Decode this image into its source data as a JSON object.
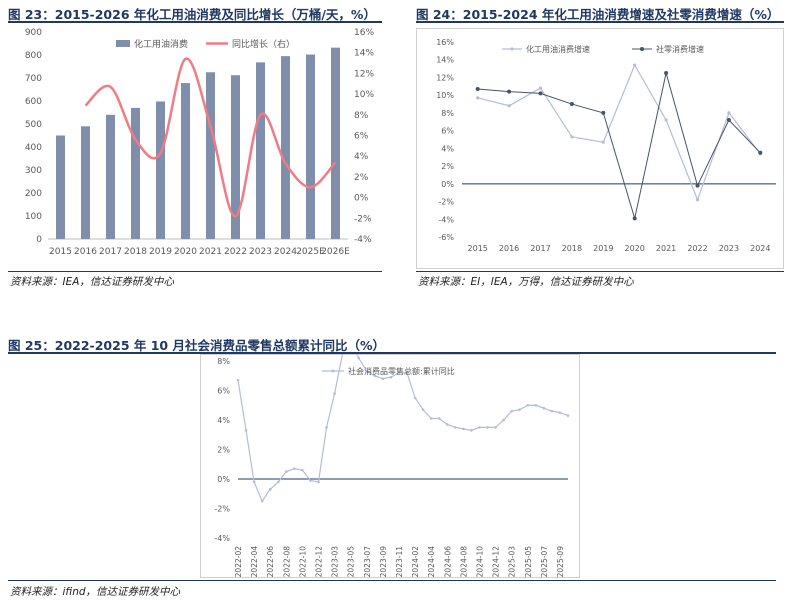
{
  "figures": [
    {
      "title": "图 23：2015-2026 年化工用油消费及同比增长（万桶/天，%）",
      "source": "资料来源：IEA，信达证券研发中心"
    },
    {
      "title": "图 24：2015-2024 年化工用油消费增速及社零消费增速（%）",
      "source": "资料来源：EI，IEA，万得，信达证券研发中心"
    },
    {
      "title": "图 25：2022-2025 年 10 月社会消费品零售总额累计同比（%）",
      "source": "资料来源：ifind，信达证券研发中心"
    }
  ],
  "chart_data": [
    {
      "type": "bar",
      "title": "",
      "categories": [
        "2015",
        "2016",
        "2017",
        "2018",
        "2019",
        "2020",
        "2021",
        "2022",
        "2023",
        "2024",
        "2025E",
        "2026E"
      ],
      "series": [
        {
          "name": "化工用油消费",
          "type": "bar",
          "axis": "left",
          "values": [
            450,
            490,
            540,
            570,
            598,
            678,
            725,
            712,
            768,
            795,
            802,
            832
          ]
        },
        {
          "name": "同比增长（右）",
          "type": "line",
          "axis": "right",
          "values": [
            null,
            8.9,
            10.7,
            5.6,
            4.3,
            13.4,
            6.9,
            -1.8,
            8.0,
            3.3,
            1.0,
            3.4
          ]
        }
      ],
      "ylim_left": [
        0,
        900
      ],
      "yticks_left": [
        "0",
        "100",
        "200",
        "300",
        "400",
        "500",
        "600",
        "700",
        "800",
        "900"
      ],
      "ylim_right": [
        -4,
        16
      ],
      "yticks_right": [
        "-4%",
        "-2%",
        "0%",
        "2%",
        "4%",
        "6%",
        "8%",
        "10%",
        "12%",
        "14%",
        "16%"
      ],
      "colors": {
        "bar": "#7f8eab",
        "line": "#f07b84"
      },
      "legend": "top-center",
      "grid": false
    },
    {
      "type": "line",
      "title": "",
      "categories": [
        "2015",
        "2016",
        "2017",
        "2018",
        "2019",
        "2020",
        "2021",
        "2022",
        "2023",
        "2024"
      ],
      "series": [
        {
          "name": "化工用油消费增速",
          "values": [
            9.7,
            8.8,
            10.8,
            5.3,
            4.7,
            13.4,
            7.2,
            -1.8,
            8.0,
            3.4
          ],
          "color": "#b4bdd6"
        },
        {
          "name": "社零消费增速",
          "values": [
            10.7,
            10.4,
            10.2,
            9.0,
            8.0,
            -3.9,
            12.5,
            -0.2,
            7.2,
            3.5
          ],
          "color": "#44546a"
        }
      ],
      "ylim": [
        -6,
        16
      ],
      "yticks": [
        "-6%",
        "-4%",
        "-2%",
        "0%",
        "2%",
        "4%",
        "6%",
        "8%",
        "10%",
        "12%",
        "14%",
        "16%"
      ],
      "legend": "top-left",
      "grid": false
    },
    {
      "type": "line",
      "title": "",
      "categories": [
        "2022-02",
        "2022-03",
        "2022-04",
        "2022-05",
        "2022-06",
        "2022-07",
        "2022-08",
        "2022-09",
        "2022-10",
        "2022-11",
        "2022-12",
        "2023-02",
        "2023-03",
        "2023-04",
        "2023-05",
        "2023-06",
        "2023-07",
        "2023-08",
        "2023-09",
        "2023-10",
        "2023-11",
        "2023-12",
        "2024-02",
        "2024-03",
        "2024-04",
        "2024-05",
        "2024-06",
        "2024-07",
        "2024-08",
        "2024-09",
        "2024-10",
        "2024-11",
        "2024-12",
        "2025-02",
        "2025-03",
        "2025-04",
        "2025-05",
        "2025-06",
        "2025-07",
        "2025-08",
        "2025-09",
        "2025-10"
      ],
      "xticks": [
        "2022-02",
        "2022-04",
        "2022-06",
        "2022-08",
        "2022-10",
        "2022-12",
        "2023-03",
        "2023-05",
        "2023-07",
        "2023-09",
        "2023-11",
        "2024-02",
        "2024-04",
        "2024-06",
        "2024-08",
        "2024-10",
        "2024-12",
        "2025-03",
        "2025-05",
        "2025-07",
        "2025-09"
      ],
      "series": [
        {
          "name": "社会消费品零售总额:累计同比",
          "values": [
            6.7,
            3.3,
            -0.2,
            -1.5,
            -0.7,
            -0.2,
            0.5,
            0.7,
            0.6,
            -0.1,
            -0.2,
            3.5,
            5.8,
            8.5,
            9.3,
            8.2,
            7.3,
            7.0,
            6.8,
            6.9,
            7.2,
            7.2,
            5.5,
            4.7,
            4.1,
            4.1,
            3.7,
            3.5,
            3.4,
            3.3,
            3.5,
            3.5,
            3.5,
            4.0,
            4.6,
            4.7,
            5.0,
            5.0,
            4.8,
            4.6,
            4.5,
            4.3
          ],
          "color": "#b4bdd6"
        }
      ],
      "ylim": [
        -4,
        8
      ],
      "yticks": [
        "-4%",
        "-2%",
        "0%",
        "2%",
        "4%",
        "6%",
        "8%"
      ],
      "legend": "top-center",
      "grid": false
    }
  ]
}
